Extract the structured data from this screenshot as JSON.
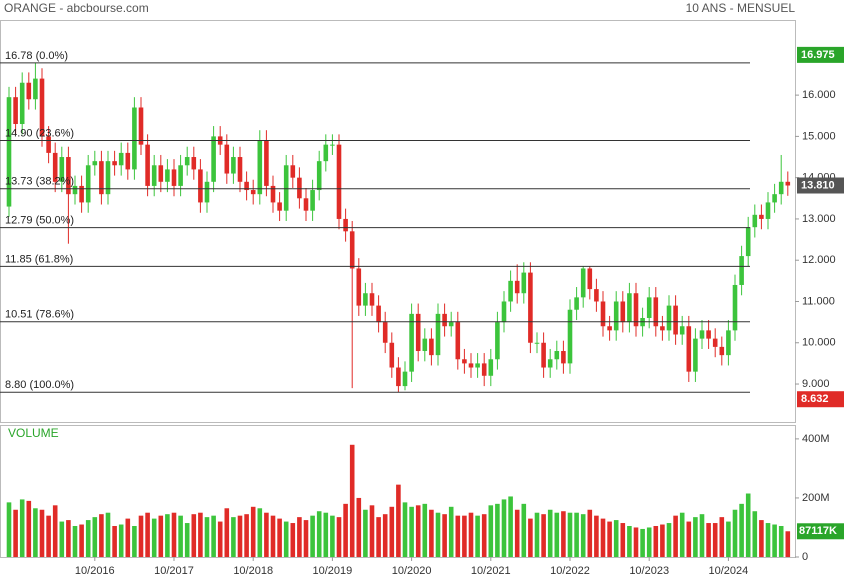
{
  "chart_data": [
    {
      "type": "candlestick",
      "title": "ORANGE - abcbourse.com",
      "subtitle": "10 ANS - MENSUEL",
      "categories": [
        null,
        null,
        null,
        null,
        null,
        null,
        null,
        null,
        null,
        null,
        null,
        null,
        null,
        "10/2016",
        null,
        null,
        null,
        null,
        null,
        null,
        null,
        null,
        null,
        null,
        null,
        "10/2017",
        null,
        null,
        null,
        null,
        null,
        null,
        null,
        null,
        null,
        null,
        null,
        "10/2018",
        null,
        null,
        null,
        null,
        null,
        null,
        null,
        null,
        null,
        null,
        null,
        "10/2019",
        null,
        null,
        null,
        null,
        null,
        null,
        null,
        null,
        null,
        null,
        null,
        "10/2020",
        null,
        null,
        null,
        null,
        null,
        null,
        null,
        null,
        null,
        null,
        null,
        "10/2021",
        null,
        null,
        null,
        null,
        null,
        null,
        null,
        null,
        null,
        null,
        null,
        "10/2022",
        null,
        null,
        null,
        null,
        null,
        null,
        null,
        null,
        null,
        null,
        null,
        "10/2023",
        null,
        null,
        null,
        null,
        null,
        null,
        null,
        null,
        null,
        null,
        null,
        "10/2024",
        null,
        null,
        null,
        null,
        null,
        null,
        null,
        null,
        null
      ],
      "open": [
        13.3,
        15.95,
        15.3,
        16.3,
        15.9,
        16.4,
        15.0,
        14.6,
        13.9,
        14.5,
        13.6,
        13.8,
        13.4,
        14.3,
        14.4,
        13.6,
        14.4,
        14.3,
        14.6,
        14.2,
        15.7,
        14.8,
        13.8,
        14.3,
        13.9,
        14.2,
        13.8,
        14.3,
        14.5,
        14.2,
        13.4,
        13.9,
        15.0,
        14.8,
        14.1,
        14.5,
        13.9,
        13.7,
        13.6,
        14.9,
        13.8,
        13.4,
        13.2,
        14.3,
        14.0,
        13.5,
        13.2,
        13.7,
        14.4,
        14.8,
        14.8,
        13.0,
        12.7,
        11.8,
        10.9,
        11.2,
        10.9,
        10.5,
        10.0,
        9.4,
        8.95,
        9.3,
        10.7,
        9.8,
        10.1,
        9.7,
        10.7,
        10.4,
        10.5,
        9.6,
        9.5,
        9.4,
        9.5,
        9.2,
        9.6,
        10.5,
        11.0,
        11.5,
        11.2,
        11.7,
        10.0,
        10.0,
        9.4,
        9.6,
        9.8,
        9.5,
        10.8,
        11.1,
        11.8,
        11.3,
        11.0,
        10.4,
        10.3,
        11.0,
        10.5,
        11.2,
        10.4,
        10.6,
        11.1,
        10.4,
        10.3,
        10.9,
        10.2,
        10.4,
        9.3,
        10.1,
        10.3,
        10.1,
        9.9,
        9.7,
        10.3,
        11.4,
        12.1,
        12.8,
        13.1,
        13.0,
        13.4,
        13.6,
        13.9
      ],
      "high": [
        16.2,
        16.2,
        16.55,
        16.55,
        16.78,
        16.65,
        15.25,
        14.85,
        14.75,
        14.75,
        14.05,
        14.05,
        14.55,
        14.65,
        14.65,
        14.65,
        14.65,
        14.85,
        14.85,
        15.95,
        15.95,
        15.05,
        14.55,
        14.55,
        14.45,
        14.45,
        14.55,
        14.75,
        14.75,
        14.45,
        14.15,
        15.25,
        15.25,
        15.05,
        14.75,
        14.75,
        14.15,
        13.95,
        15.15,
        15.15,
        14.05,
        13.65,
        14.55,
        14.55,
        14.25,
        13.75,
        13.95,
        14.65,
        15.05,
        15.05,
        15.05,
        13.25,
        12.95,
        12.05,
        11.45,
        11.45,
        11.15,
        10.75,
        10.25,
        9.65,
        9.55,
        10.95,
        10.95,
        10.35,
        10.35,
        10.95,
        10.95,
        10.75,
        10.75,
        9.85,
        9.75,
        9.75,
        9.75,
        9.85,
        10.75,
        11.25,
        11.75,
        11.9,
        11.95,
        11.95,
        10.25,
        10.25,
        9.85,
        10.05,
        10.05,
        11.05,
        11.35,
        11.85,
        11.85,
        11.55,
        11.25,
        10.65,
        11.25,
        11.25,
        11.45,
        11.45,
        10.85,
        11.35,
        11.35,
        10.65,
        11.15,
        11.15,
        10.65,
        10.65,
        10.35,
        10.55,
        10.55,
        10.35,
        10.15,
        10.55,
        11.65,
        12.35,
        13.05,
        13.35,
        13.35,
        13.65,
        13.85,
        14.55,
        14.15
      ],
      "low": [
        13.05,
        15.05,
        15.05,
        15.65,
        15.65,
        14.75,
        14.35,
        13.65,
        13.65,
        12.4,
        13.35,
        13.15,
        13.15,
        14.05,
        13.35,
        13.35,
        14.05,
        14.05,
        13.95,
        13.95,
        14.55,
        13.55,
        13.55,
        13.65,
        13.65,
        13.55,
        13.55,
        14.05,
        13.95,
        13.15,
        13.15,
        13.65,
        14.55,
        13.85,
        13.85,
        13.65,
        13.45,
        13.35,
        13.35,
        13.55,
        13.15,
        12.95,
        12.95,
        13.75,
        13.25,
        12.95,
        12.95,
        13.45,
        14.15,
        14.55,
        12.75,
        12.45,
        8.9,
        10.65,
        10.65,
        10.65,
        10.25,
        9.75,
        9.15,
        8.8,
        8.85,
        9.05,
        9.55,
        9.55,
        9.45,
        9.45,
        10.15,
        10.15,
        9.35,
        9.25,
        9.15,
        9.15,
        8.95,
        8.95,
        9.35,
        10.25,
        10.75,
        10.95,
        10.95,
        9.75,
        9.75,
        9.15,
        9.15,
        9.35,
        9.25,
        9.25,
        10.55,
        10.85,
        11.05,
        10.75,
        10.15,
        10.05,
        10.05,
        10.25,
        10.25,
        10.15,
        10.15,
        10.35,
        10.15,
        10.05,
        10.05,
        9.95,
        9.95,
        9.05,
        9.05,
        9.85,
        9.85,
        9.65,
        9.45,
        9.45,
        10.05,
        11.15,
        11.85,
        12.55,
        12.75,
        12.75,
        13.15,
        13.35,
        13.56
      ],
      "close": [
        15.95,
        15.3,
        16.3,
        15.9,
        16.4,
        15.0,
        14.6,
        13.9,
        14.5,
        13.6,
        13.8,
        13.4,
        14.3,
        14.4,
        13.6,
        14.4,
        14.3,
        14.6,
        14.2,
        15.7,
        14.8,
        13.8,
        14.3,
        13.9,
        14.2,
        13.8,
        14.3,
        14.5,
        14.2,
        13.4,
        13.9,
        15.0,
        14.8,
        14.1,
        14.5,
        13.9,
        13.7,
        13.6,
        14.9,
        13.8,
        13.4,
        13.2,
        14.3,
        14.0,
        13.5,
        13.2,
        13.7,
        14.4,
        14.8,
        14.8,
        13.0,
        12.7,
        11.8,
        10.9,
        11.2,
        10.9,
        10.5,
        10.0,
        9.4,
        8.95,
        9.3,
        10.7,
        9.8,
        10.1,
        9.7,
        10.7,
        10.4,
        10.5,
        9.6,
        9.5,
        9.4,
        9.5,
        9.2,
        9.6,
        10.5,
        11.0,
        11.5,
        11.2,
        11.7,
        10.0,
        10.0,
        9.4,
        9.6,
        9.8,
        9.5,
        10.8,
        11.1,
        11.8,
        11.3,
        11.0,
        10.4,
        10.3,
        11.0,
        10.5,
        11.2,
        10.4,
        10.6,
        11.1,
        10.4,
        10.3,
        10.9,
        10.2,
        10.4,
        9.3,
        10.1,
        10.3,
        10.1,
        9.9,
        9.7,
        10.3,
        11.4,
        12.1,
        12.8,
        13.1,
        13.0,
        13.4,
        13.6,
        13.9,
        13.81
      ],
      "up_color": "#3cc43c",
      "down_color": "#e02b27",
      "ylim": [
        8.08,
        17.82
      ],
      "yticks": [
        {
          "value": 9,
          "label": "9.000"
        },
        {
          "value": 10,
          "label": "10.000"
        },
        {
          "value": 11,
          "label": "11.000"
        },
        {
          "value": 12,
          "label": "12.000"
        },
        {
          "value": 13,
          "label": "13.000"
        },
        {
          "value": 14,
          "label": "14.000"
        },
        {
          "value": 15,
          "label": "15.000"
        },
        {
          "value": 16,
          "label": "16.000"
        }
      ],
      "level_color": "#333333",
      "levels": [
        {
          "value": 16.78,
          "label": "16.78  (0.0%)"
        },
        {
          "value": 14.9,
          "label": "14.90  (23.6%)"
        },
        {
          "value": 13.73,
          "label": "13.73  (38.2%)"
        },
        {
          "value": 12.79,
          "label": "12.79  (50.0%)"
        },
        {
          "value": 11.85,
          "label": "11.85  (61.8%)"
        },
        {
          "value": 10.51,
          "label": "10.51  (78.6%)"
        },
        {
          "value": 8.8,
          "label": "8.80  (100.0%)"
        }
      ],
      "markers": [
        {
          "value": 16.975,
          "color": "#2aa52a"
        },
        {
          "value": 13.81,
          "label": "13.810",
          "color": "#555555"
        },
        {
          "value": 8.632,
          "color": "#e02b27"
        }
      ]
    },
    {
      "type": "bar",
      "title": "VOLUME",
      "values": [
        185,
        160,
        195,
        190,
        165,
        160,
        140,
        175,
        120,
        125,
        105,
        110,
        125,
        135,
        145,
        150,
        105,
        110,
        130,
        105,
        140,
        150,
        130,
        140,
        145,
        150,
        140,
        115,
        145,
        150,
        135,
        140,
        120,
        165,
        135,
        140,
        145,
        170,
        165,
        150,
        140,
        130,
        120,
        115,
        135,
        125,
        140,
        155,
        150,
        140,
        135,
        180,
        380,
        200,
        160,
        175,
        135,
        145,
        170,
        245,
        185,
        170,
        175,
        180,
        160,
        150,
        145,
        170,
        140,
        140,
        150,
        140,
        145,
        175,
        180,
        195,
        205,
        160,
        180,
        130,
        150,
        145,
        160,
        150,
        155,
        150,
        150,
        145,
        160,
        140,
        130,
        120,
        125,
        115,
        105,
        100,
        95,
        100,
        105,
        110,
        115,
        140,
        150,
        120,
        135,
        145,
        115,
        115,
        135,
        120,
        160,
        180,
        215,
        155,
        125,
        115,
        110,
        105,
        87.117
      ],
      "ylim": [
        0,
        447
      ],
      "yticks": [
        0,
        {
          "value": 200,
          "label": "200M"
        },
        {
          "value": 400,
          "label": "400M"
        }
      ],
      "marker": {
        "value": 87.117,
        "label": "87117K",
        "color": "#2aa52a"
      }
    }
  ]
}
